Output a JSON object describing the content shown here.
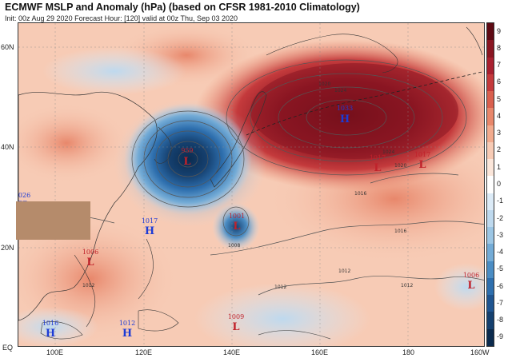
{
  "title": "ECMWF MSLP and Anomaly (hPa) (based on CFSR 1981-2010 Climatology)",
  "subtitle": "Init: 00z Aug 29 2020   Forecast Hour: [120]   valid at 00z Thu, Sep 03 2020",
  "lat_labels": [
    "60N",
    "40N",
    "20N",
    "EQ"
  ],
  "lon_labels": [
    "100E",
    "120E",
    "140E",
    "160E",
    "180",
    "160W"
  ],
  "colorbar": {
    "values": [
      "9",
      "8",
      "7",
      "6",
      "5",
      "4",
      "3",
      "2",
      "1",
      "0",
      "-1",
      "-2",
      "-3",
      "-4",
      "-5",
      "-6",
      "-7",
      "-8",
      "-9"
    ],
    "colors": [
      "#5e0a14",
      "#8a1622",
      "#a82030",
      "#c43a3c",
      "#d9604e",
      "#e8876b",
      "#f2ab8e",
      "#f7cbb5",
      "#fbe6da",
      "#ffffff",
      "#dcebf7",
      "#bed9ee",
      "#9cc6e4",
      "#73abd6",
      "#4b8dc4",
      "#2e6fae",
      "#1f5591",
      "#15406f",
      "#0b2b4e"
    ]
  },
  "pressure_centers": [
    {
      "type": "L",
      "value": "959",
      "color": "#c0222b"
    },
    {
      "type": "H",
      "value": "1033",
      "color": "#1c3bd6"
    },
    {
      "type": "L",
      "value": "1017",
      "color": "#c0222b"
    },
    {
      "type": "L",
      "value": "1017",
      "color": "#c0222b"
    },
    {
      "type": "L",
      "value": "1001",
      "color": "#c0222b"
    },
    {
      "type": "H",
      "value": "1017",
      "color": "#1c3bd6"
    },
    {
      "type": "L",
      "value": "1006",
      "color": "#c0222b"
    },
    {
      "type": "L",
      "value": "1006",
      "color": "#c0222b"
    },
    {
      "type": "L",
      "value": "1009",
      "color": "#c0222b"
    },
    {
      "type": "H",
      "value": "1016",
      "color": "#1c3bd6"
    },
    {
      "type": "H",
      "value": "1012",
      "color": "#1c3bd6"
    },
    {
      "type": "H",
      "value": "1026",
      "color": "#1c3bd6"
    }
  ],
  "isobar_labels": [
    "1024",
    "1020",
    "1016",
    "1012",
    "1008",
    "1012",
    "1012",
    "1016",
    "1020",
    "1024",
    "1012"
  ]
}
